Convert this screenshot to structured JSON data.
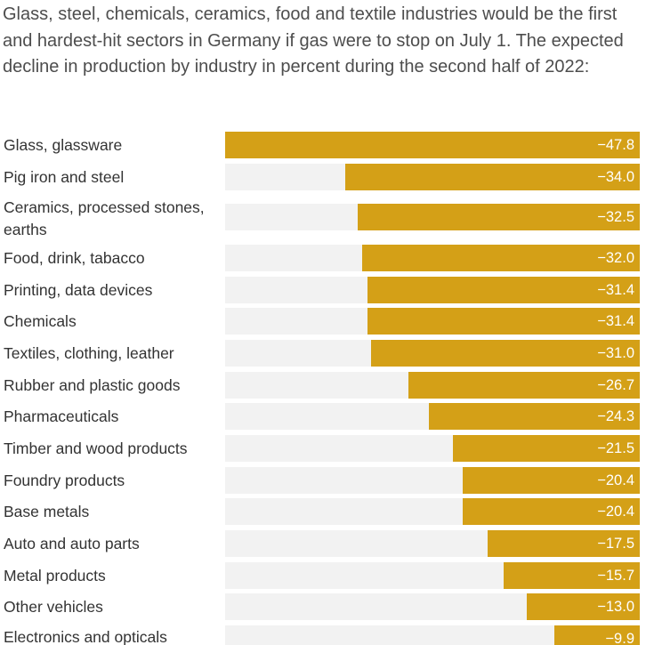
{
  "chart_data": {
    "type": "bar",
    "orientation": "horizontal",
    "title": "Glass, steel, chemicals, ceramics, food and textile industries would be the first and hardest-hit sectors in Germany if gas were to stop on July 1. The expected decline in production by industry in percent during the second half of 2022:",
    "categories": [
      "Glass, glassware",
      "Pig iron and steel",
      "Ceramics, processed stones, earths",
      "Food, drink, tabacco",
      "Printing, data devices",
      "Chemicals",
      "Textiles, clothing, leather",
      "Rubber and plastic goods",
      "Pharmaceuticals",
      "Timber and wood products",
      "Foundry products",
      "Base metals",
      "Auto and auto parts",
      "Metal products",
      "Other vehicles",
      "Electronics and opticals"
    ],
    "values": [
      -47.8,
      -34.0,
      -32.5,
      -32.0,
      -31.4,
      -31.4,
      -31.0,
      -26.7,
      -24.3,
      -21.5,
      -20.4,
      -20.4,
      -17.5,
      -15.7,
      -13.0,
      -9.9
    ],
    "value_labels": [
      "−47.8",
      "−34.0",
      "−32.5",
      "−32.0",
      "−31.4",
      "−31.4",
      "−31.0",
      "−26.7",
      "−24.3",
      "−21.5",
      "−20.4",
      "−20.4",
      "−17.5",
      "−15.7",
      "−13.0",
      "−9.9"
    ],
    "xlim": [
      -47.8,
      0
    ],
    "xlabel": "",
    "ylabel": "",
    "grid": false,
    "colors": {
      "bar": "#d4a017",
      "track": "#f2f2f2",
      "value_text": "#ffffff"
    }
  }
}
